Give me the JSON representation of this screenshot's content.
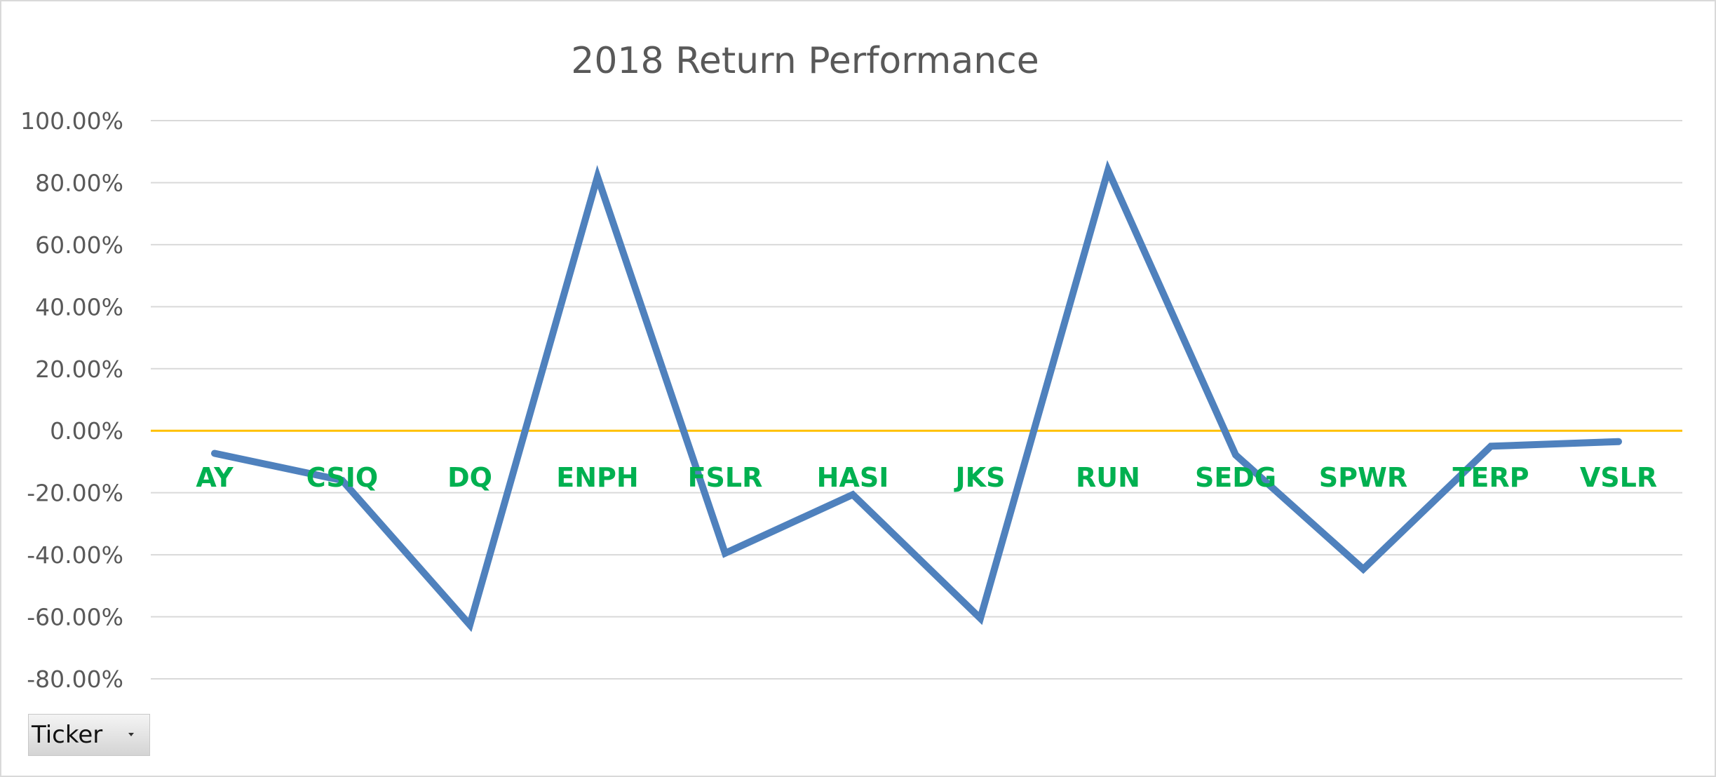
{
  "filter_button": {
    "label": "Ticker"
  },
  "colors": {
    "series": "#4f81bd",
    "tick_label": "#00b050",
    "zero_line": "#ffc000",
    "gridline": "#d9d9d9",
    "text": "#595959"
  },
  "chart_data": {
    "type": "line",
    "title": "2018 Return Performance",
    "xlabel": "",
    "ylabel": "",
    "categories": [
      "AY",
      "CSIQ",
      "DQ",
      "ENPH",
      "FSLR",
      "HASI",
      "JKS",
      "RUN",
      "SEDG",
      "SPWR",
      "TERP",
      "VSLR"
    ],
    "series": [
      {
        "values": [
          -7.3,
          -16.0,
          -62.6,
          81.9,
          -39.5,
          -20.6,
          -60.5,
          84.0,
          -7.8,
          -44.6,
          -5.0,
          -3.5
        ]
      }
    ],
    "ylim": [
      -80,
      100
    ],
    "yticks": [
      100,
      80,
      60,
      40,
      20,
      0,
      -20,
      -40,
      -60,
      -80
    ],
    "ytick_labels": [
      "100.00%",
      "80.00%",
      "60.00%",
      "40.00%",
      "20.00%",
      "0.00%",
      "-20.00%",
      "-40.00%",
      "-60.00%",
      "-80.00%"
    ],
    "grid": true,
    "legend": "none"
  }
}
